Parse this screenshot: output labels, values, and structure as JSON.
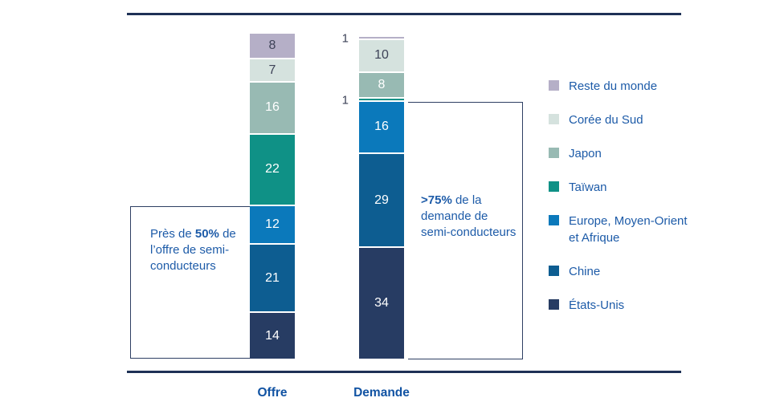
{
  "chart_data": {
    "type": "bar",
    "stacked": true,
    "orientation": "vertical",
    "categories": [
      "Offre",
      "Demande"
    ],
    "series_order": "top-of-stack-first",
    "series": [
      {
        "id": "reste-du-monde",
        "name": "Reste du monde",
        "color": "#b5afc7",
        "label_dark": true,
        "values": [
          8,
          1
        ]
      },
      {
        "id": "coree-du-sud",
        "name": "Corée du Sud",
        "color": "#d5e2de",
        "label_dark": true,
        "values": [
          7,
          10
        ]
      },
      {
        "id": "japon",
        "name": "Japon",
        "color": "#98bab3",
        "label_dark": false,
        "values": [
          16,
          8
        ]
      },
      {
        "id": "taiwan",
        "name": "Taïwan",
        "color": "#0f9186",
        "label_dark": false,
        "values": [
          22,
          1
        ]
      },
      {
        "id": "europe-moyen-orient-afrique",
        "name": "Europe, Moyen-Orient et Afrique",
        "color": "#0b79bb",
        "label_dark": false,
        "values": [
          12,
          16
        ]
      },
      {
        "id": "chine",
        "name": "Chine",
        "color": "#0d5d91",
        "label_dark": false,
        "values": [
          21,
          29
        ]
      },
      {
        "id": "etats-unis",
        "name": "États-Unis",
        "color": "#273c63",
        "label_dark": false,
        "values": [
          14,
          34
        ]
      }
    ],
    "legend_position": "right",
    "annotations": [
      {
        "target": "Offre",
        "text": "Près de 50% de l’offre de semi-conducteurs"
      },
      {
        "target": "Demande",
        "text": ">75% de la demande de semi-conducteurs"
      }
    ]
  },
  "annotations": {
    "supply": {
      "prefix": "Près de ",
      "bold": "50%",
      "suffix": " de l’offre de semi-conducteurs"
    },
    "demand": {
      "prefix": "",
      "bold": ">75%",
      "suffix": " de la demande de semi-conducteurs"
    }
  },
  "palette": {
    "rule": "#1e3156",
    "annotation_text_blue": "#1d5ba8",
    "axis_label_blue": "#1153a3",
    "dark_value_text": "#3e4358",
    "white_value_text": "#ffffff"
  }
}
